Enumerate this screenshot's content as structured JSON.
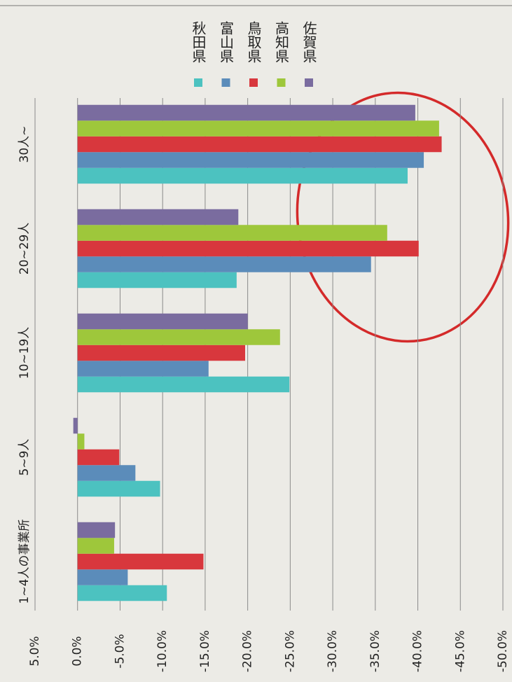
{
  "chart_data": {
    "type": "bar",
    "orientation": "horizontal-rotated",
    "categories": [
      "1~4人の事業所",
      "5~9人",
      "10~19人",
      "20~29人",
      "30人~"
    ],
    "series": [
      {
        "name": "秋田県",
        "color": "#4cc2c0",
        "values": [
          -10.5,
          -9.7,
          -24.9,
          -18.7,
          -38.8
        ]
      },
      {
        "name": "富山県",
        "color": "#5b8cba",
        "values": [
          -5.9,
          -6.8,
          -15.4,
          -34.5,
          -40.7
        ]
      },
      {
        "name": "鳥取県",
        "color": "#d8373d",
        "values": [
          -14.8,
          -4.9,
          -19.7,
          -40.1,
          -42.8
        ]
      },
      {
        "name": "高知県",
        "color": "#9ec73b",
        "values": [
          -4.3,
          -0.8,
          -23.8,
          -36.4,
          -42.5
        ]
      },
      {
        "name": "佐賀県",
        "color": "#7a6c9f",
        "values": [
          -4.4,
          0.5,
          -20.0,
          -18.9,
          -39.7
        ]
      }
    ],
    "ylim": [
      5,
      -50
    ],
    "yticks": [
      {
        "value": 5,
        "label": "5.0%"
      },
      {
        "value": 0,
        "label": "0.0%"
      },
      {
        "value": -5,
        "label": "-5.0%"
      },
      {
        "value": -10,
        "label": "-10.0%"
      },
      {
        "value": -15,
        "label": "-15.0%"
      },
      {
        "value": -20,
        "label": "-20.0%"
      },
      {
        "value": -25,
        "label": "-25.0%"
      },
      {
        "value": -30,
        "label": "-30.0%"
      },
      {
        "value": -35,
        "label": "-35.0%"
      },
      {
        "value": -40,
        "label": "-40.0%"
      },
      {
        "value": -45,
        "label": "-45.0%"
      },
      {
        "value": -50,
        "label": "-50.0%"
      }
    ],
    "grid": true
  }
}
